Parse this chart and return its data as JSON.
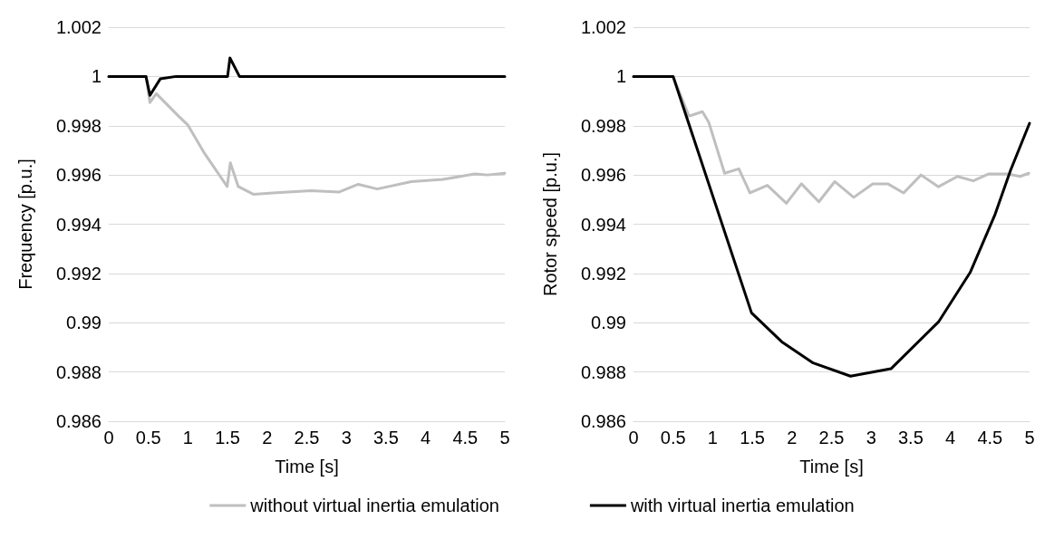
{
  "chart_data": [
    {
      "type": "line",
      "xlabel": "Time [s]",
      "ylabel": "Frequency [p.u.]",
      "xlim": [
        0,
        5
      ],
      "xticks": [
        0,
        0.5,
        1,
        1.5,
        2,
        2.5,
        3,
        3.5,
        4,
        4.5,
        5
      ],
      "ylim": [
        0.986,
        1.002
      ],
      "yticks": [
        0.986,
        0.988,
        0.99,
        0.992,
        0.994,
        0.996,
        0.998,
        1,
        1.002
      ],
      "grid": "y",
      "legend": "bottom",
      "marker": "none",
      "series": [
        {
          "name": "without virtual inertia emulation",
          "color": "#bfbfbf",
          "x": [
            0,
            0.47,
            0.52,
            0.6,
            0.88,
            1.0,
            1.2,
            1.495,
            1.535,
            1.635,
            1.83,
            2.07,
            2.55,
            2.91,
            3.15,
            3.39,
            3.82,
            4.22,
            4.62,
            4.78,
            5.0
          ],
          "values": [
            1,
            1,
            0.99894,
            0.9993,
            0.99839,
            0.99802,
            0.99692,
            0.99553,
            0.99649,
            0.99553,
            0.99521,
            0.99527,
            0.99536,
            0.99531,
            0.99562,
            0.99543,
            0.99573,
            0.99582,
            0.99604,
            0.996,
            0.99607
          ]
        },
        {
          "name": "with virtual inertia emulation",
          "color": "#000000",
          "x": [
            0,
            0.47,
            0.52,
            0.65,
            0.85,
            1.5,
            1.53,
            1.65,
            5.0
          ],
          "values": [
            1,
            1,
            0.99923,
            0.9999,
            1,
            1,
            1.00075,
            1,
            1
          ]
        }
      ]
    },
    {
      "type": "line",
      "xlabel": "Time [s]",
      "ylabel": "Rotor speed [p.u.]",
      "xlim": [
        0,
        5
      ],
      "xticks": [
        0,
        0.5,
        1,
        1.5,
        2,
        2.5,
        3,
        3.5,
        4,
        4.5,
        5
      ],
      "ylim": [
        0.986,
        1.002
      ],
      "yticks": [
        0.986,
        0.988,
        0.99,
        0.992,
        0.994,
        0.996,
        0.998,
        1,
        1.002
      ],
      "grid": "y",
      "marker": "none",
      "series": [
        {
          "name": "without virtual inertia emulation",
          "color": "#bfbfbf",
          "x": [
            0,
            0.5,
            0.7,
            0.87,
            0.95,
            1.15,
            1.33,
            1.47,
            1.69,
            1.93,
            2.12,
            2.34,
            2.54,
            2.78,
            3.02,
            3.21,
            3.41,
            3.63,
            3.85,
            4.09,
            4.29,
            4.48,
            4.72,
            4.88,
            4.99
          ],
          "values": [
            1,
            1,
            0.99839,
            0.99857,
            0.99814,
            0.99607,
            0.99625,
            0.99527,
            0.99558,
            0.99485,
            0.99564,
            0.99491,
            0.99573,
            0.99509,
            0.99564,
            0.99564,
            0.99527,
            0.996,
            0.99552,
            0.99594,
            0.99576,
            0.99604,
            0.99604,
            0.99594,
            0.99607
          ]
        },
        {
          "name": "with virtual inertia emulation",
          "color": "#000000",
          "x": [
            0,
            0.5,
            1.49,
            1.87,
            2.26,
            2.74,
            3.25,
            3.85,
            4.25,
            4.56,
            4.76,
            5.0
          ],
          "values": [
            1,
            1,
            0.9904,
            0.98923,
            0.98838,
            0.98783,
            0.98813,
            0.99003,
            0.99204,
            0.99436,
            0.99619,
            0.9981
          ]
        }
      ]
    }
  ]
}
